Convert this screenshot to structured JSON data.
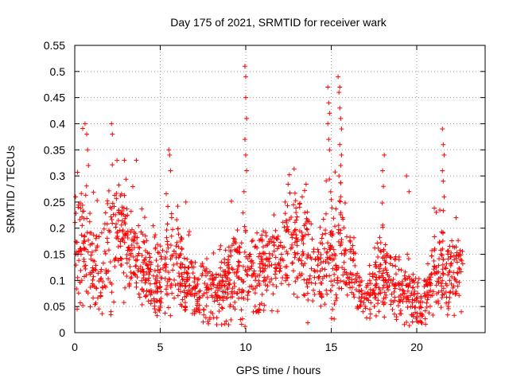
{
  "chart_data": {
    "type": "scatter",
    "title": "Day 175 of 2021, SRMTID for receiver wark",
    "xlabel": "GPS time / hours",
    "ylabel": "SRMTID / TECUs",
    "xlim": [
      0,
      24
    ],
    "ylim": [
      0,
      0.55
    ],
    "x_ticks": [
      0,
      5,
      10,
      15,
      20
    ],
    "x_tick_labels": [
      "0",
      "5",
      "10",
      "15",
      "20"
    ],
    "y_ticks": [
      0,
      0.05,
      0.1,
      0.15,
      0.2,
      0.25,
      0.3,
      0.35,
      0.4,
      0.45,
      0.5,
      0.55
    ],
    "y_tick_labels": [
      "0",
      "0.05",
      "0.1",
      "0.15",
      "0.2",
      "0.25",
      "0.3",
      "0.35",
      "0.4",
      "0.45",
      "0.5",
      "0.55"
    ],
    "grid": true,
    "marker": "+",
    "color": "#ff0000",
    "envelope": {
      "hours": [
        0,
        0.5,
        1,
        1.5,
        2,
        2.5,
        3,
        3.5,
        4,
        4.5,
        5,
        5.5,
        6,
        6.5,
        7,
        7.5,
        8,
        8.5,
        9,
        9.5,
        10,
        10.5,
        11,
        11.5,
        12,
        12.5,
        13,
        13.5,
        14,
        14.5,
        15,
        15.5,
        16,
        16.5,
        17,
        17.5,
        18,
        18.5,
        19,
        19.5,
        20,
        20.5,
        21,
        21.5,
        22,
        22.5
      ],
      "median": [
        0.14,
        0.16,
        0.13,
        0.1,
        0.17,
        0.2,
        0.17,
        0.15,
        0.13,
        0.11,
        0.1,
        0.14,
        0.13,
        0.09,
        0.09,
        0.08,
        0.08,
        0.09,
        0.1,
        0.12,
        0.12,
        0.11,
        0.12,
        0.13,
        0.15,
        0.16,
        0.17,
        0.15,
        0.12,
        0.12,
        0.14,
        0.18,
        0.15,
        0.09,
        0.06,
        0.09,
        0.12,
        0.1,
        0.08,
        0.08,
        0.06,
        0.06,
        0.11,
        0.12,
        0.1,
        0.11
      ],
      "spread": [
        0.06,
        0.08,
        0.06,
        0.05,
        0.08,
        0.07,
        0.07,
        0.05,
        0.05,
        0.05,
        0.05,
        0.06,
        0.06,
        0.04,
        0.04,
        0.04,
        0.04,
        0.04,
        0.05,
        0.05,
        0.06,
        0.05,
        0.05,
        0.05,
        0.05,
        0.06,
        0.07,
        0.07,
        0.05,
        0.05,
        0.07,
        0.08,
        0.06,
        0.04,
        0.02,
        0.04,
        0.06,
        0.05,
        0.04,
        0.04,
        0.03,
        0.03,
        0.05,
        0.05,
        0.05,
        0.05
      ]
    },
    "peaks": [
      {
        "x": 0.05,
        "y": 0.26
      },
      {
        "x": 0.2,
        "y": 0.24
      },
      {
        "x": 0.6,
        "y": 0.4
      },
      {
        "x": 0.7,
        "y": 0.38
      },
      {
        "x": 0.75,
        "y": 0.35
      },
      {
        "x": 0.8,
        "y": 0.32
      },
      {
        "x": 2.15,
        "y": 0.4
      },
      {
        "x": 2.2,
        "y": 0.38
      },
      {
        "x": 2.9,
        "y": 0.33
      },
      {
        "x": 3.6,
        "y": 0.33
      },
      {
        "x": 5.5,
        "y": 0.35
      },
      {
        "x": 5.55,
        "y": 0.34
      },
      {
        "x": 5.6,
        "y": 0.31
      },
      {
        "x": 6.5,
        "y": 0.25
      },
      {
        "x": 9.95,
        "y": 0.51
      },
      {
        "x": 10.0,
        "y": 0.49
      },
      {
        "x": 10.0,
        "y": 0.45
      },
      {
        "x": 10.05,
        "y": 0.41
      },
      {
        "x": 9.95,
        "y": 0.37
      },
      {
        "x": 10.0,
        "y": 0.34
      },
      {
        "x": 10.05,
        "y": 0.31
      },
      {
        "x": 9.9,
        "y": 0.27
      },
      {
        "x": 12.3,
        "y": 0.25
      },
      {
        "x": 13.3,
        "y": 0.26
      },
      {
        "x": 14.8,
        "y": 0.47
      },
      {
        "x": 14.85,
        "y": 0.44
      },
      {
        "x": 14.9,
        "y": 0.42
      },
      {
        "x": 14.8,
        "y": 0.4
      },
      {
        "x": 14.85,
        "y": 0.37
      },
      {
        "x": 14.9,
        "y": 0.35
      },
      {
        "x": 15.4,
        "y": 0.49
      },
      {
        "x": 15.5,
        "y": 0.47
      },
      {
        "x": 15.45,
        "y": 0.46
      },
      {
        "x": 15.5,
        "y": 0.43
      },
      {
        "x": 15.55,
        "y": 0.41
      },
      {
        "x": 15.6,
        "y": 0.39
      },
      {
        "x": 15.5,
        "y": 0.36
      },
      {
        "x": 15.6,
        "y": 0.34
      },
      {
        "x": 15.55,
        "y": 0.32
      },
      {
        "x": 15.45,
        "y": 0.3
      },
      {
        "x": 18.1,
        "y": 0.34
      },
      {
        "x": 18.0,
        "y": 0.31
      },
      {
        "x": 18.05,
        "y": 0.28
      },
      {
        "x": 19.4,
        "y": 0.3
      },
      {
        "x": 19.55,
        "y": 0.27
      },
      {
        "x": 21.5,
        "y": 0.39
      },
      {
        "x": 21.55,
        "y": 0.36
      },
      {
        "x": 21.6,
        "y": 0.34
      },
      {
        "x": 21.5,
        "y": 0.31
      },
      {
        "x": 21.55,
        "y": 0.29
      },
      {
        "x": 21.6,
        "y": 0.26
      },
      {
        "x": 22.3,
        "y": 0.22
      },
      {
        "x": 20.1,
        "y": 0.02
      },
      {
        "x": 20.0,
        "y": 0.03
      },
      {
        "x": 19.4,
        "y": 0.02
      }
    ]
  }
}
